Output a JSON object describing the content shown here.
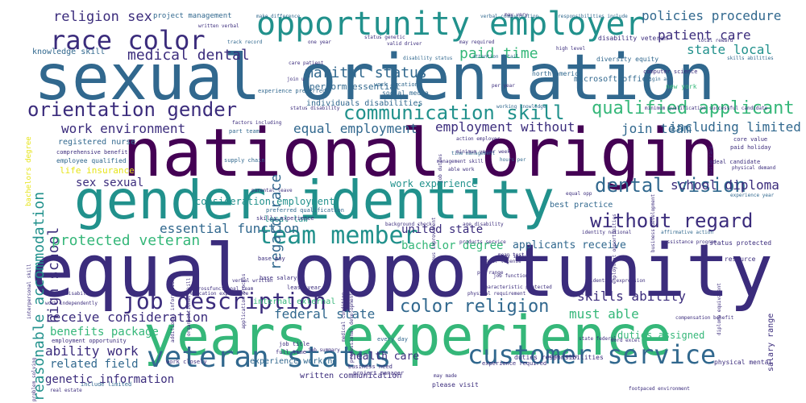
{
  "palette": {
    "dark_purple": "#440154",
    "indigo": "#3b2c7c",
    "blue": "#31688e",
    "teal": "#21918c",
    "green": "#35b779",
    "lime": "#90d743",
    "yellow": "#e6e419"
  },
  "words": [
    {
      "text": "sexual orientation",
      "color": "#31688e"
    },
    {
      "text": "national origin",
      "color": "#440154"
    },
    {
      "text": "gender identity",
      "color": "#21918c"
    },
    {
      "text": "equal opportunity",
      "color": "#3b2c7c"
    },
    {
      "text": "years experience",
      "color": "#35b779"
    },
    {
      "text": "opportunity employer",
      "color": "#21918c"
    },
    {
      "text": "race color",
      "color": "#3b2c7c"
    },
    {
      "text": "veteran status",
      "color": "#31688e"
    },
    {
      "text": "customer service",
      "color": "#31688e"
    },
    {
      "text": "team member",
      "color": "#21918c"
    },
    {
      "text": "job description",
      "color": "#3b2c7c"
    },
    {
      "text": "orientation gender",
      "color": "#3b2c7c"
    },
    {
      "text": "communication skill",
      "color": "#21918c"
    },
    {
      "text": "qualified applicant",
      "color": "#35b779"
    },
    {
      "text": "without regard",
      "color": "#3b2c7c"
    },
    {
      "text": "dental vision",
      "color": "#31688e"
    },
    {
      "text": "color religion",
      "color": "#31688e"
    },
    {
      "text": "reasonable accommodation",
      "color": "#21918c"
    },
    {
      "text": "high school",
      "color": "#3b2c7c"
    },
    {
      "text": "regard race",
      "color": "#31688e"
    },
    {
      "text": "medical dental",
      "color": "#3b2c7c"
    },
    {
      "text": "marital status",
      "color": "#31688e"
    },
    {
      "text": "paid time",
      "color": "#35b779"
    },
    {
      "text": "religion sex",
      "color": "#3b2c7c"
    },
    {
      "text": "policies procedure",
      "color": "#31688e"
    },
    {
      "text": "patient care",
      "color": "#3b2c7c"
    },
    {
      "text": "state local",
      "color": "#21918c"
    },
    {
      "text": "work environment",
      "color": "#3b2c7c"
    },
    {
      "text": "equal employment",
      "color": "#31688e"
    },
    {
      "text": "employment without",
      "color": "#3b2c7c"
    },
    {
      "text": "join team",
      "color": "#31688e"
    },
    {
      "text": "including limited",
      "color": "#31688e"
    },
    {
      "text": "school diploma",
      "color": "#3b2c7c"
    },
    {
      "text": "essential function",
      "color": "#31688e"
    },
    {
      "text": "protected veteran",
      "color": "#35b779"
    },
    {
      "text": "skills ability",
      "color": "#3b2c7c"
    },
    {
      "text": "must able",
      "color": "#35b779"
    },
    {
      "text": "federal state",
      "color": "#31688e"
    },
    {
      "text": "receive consideration",
      "color": "#3b2c7c"
    },
    {
      "text": "ability work",
      "color": "#3b2c7c"
    },
    {
      "text": "benefits package",
      "color": "#35b779"
    },
    {
      "text": "related field",
      "color": "#31688e"
    },
    {
      "text": "genetic information",
      "color": "#3b2c7c"
    },
    {
      "text": "sex sexual",
      "color": "#3b2c7c"
    },
    {
      "text": "united state",
      "color": "#3b2c7c"
    },
    {
      "text": "bachelor degree",
      "color": "#35b779"
    },
    {
      "text": "applicants receive",
      "color": "#31688e"
    },
    {
      "text": "health care",
      "color": "#3b2c7c"
    },
    {
      "text": "work experience",
      "color": "#21918c"
    },
    {
      "text": "duties assigned",
      "color": "#35b779"
    },
    {
      "text": "consideration employment",
      "color": "#21918c"
    },
    {
      "text": "life insurance",
      "color": "#e6e419"
    },
    {
      "text": "perform essential",
      "color": "#31688e"
    },
    {
      "text": "knowledge skill",
      "color": "#31688e"
    },
    {
      "text": "registered nurse",
      "color": "#31688e"
    },
    {
      "text": "project management",
      "color": "#31688e"
    },
    {
      "text": "microsoft office",
      "color": "#31688e"
    },
    {
      "text": "individuals disabilities",
      "color": "#31688e"
    },
    {
      "text": "local law",
      "color": "#21918c"
    },
    {
      "text": "internal external",
      "color": "#35b779"
    },
    {
      "text": "best practice",
      "color": "#31688e"
    },
    {
      "text": "experience working",
      "color": "#31688e"
    },
    {
      "text": "written communication",
      "color": "#3b2c7c"
    },
    {
      "text": "salary range",
      "color": "#3b2c7c"
    },
    {
      "text": "bachelors degree",
      "color": "#e6e419"
    },
    {
      "text": "north america",
      "color": "#31688e"
    },
    {
      "text": "new york",
      "color": "#35b779"
    },
    {
      "text": "status protected",
      "color": "#3b2c7c"
    },
    {
      "text": "human resource",
      "color": "#3b2c7c"
    },
    {
      "text": "employee qualified",
      "color": "#31688e"
    },
    {
      "text": "comprehensive benefit",
      "color": "#3b2c7c"
    },
    {
      "text": "supply chain",
      "color": "#31688e"
    },
    {
      "text": "part team",
      "color": "#31688e"
    },
    {
      "text": "disability veteran",
      "color": "#3b2c7c"
    },
    {
      "text": "diversity equity",
      "color": "#31688e"
    },
    {
      "text": "social media",
      "color": "#31688e"
    },
    {
      "text": "work location",
      "color": "#31688e"
    },
    {
      "text": "experience preferred",
      "color": "#31688e"
    },
    {
      "text": "computer science",
      "color": "#3b2c7c"
    },
    {
      "text": "preferred qualification",
      "color": "#31688e"
    },
    {
      "text": "skills experience",
      "color": "#3b2c7c"
    },
    {
      "text": "employment opportunity",
      "color": "#3b2c7c"
    },
    {
      "text": "job title",
      "color": "#3b2c7c"
    },
    {
      "text": "full time",
      "color": "#3b2c7c"
    },
    {
      "text": "please visit",
      "color": "#3b2c7c"
    },
    {
      "text": "every day",
      "color": "#31688e"
    },
    {
      "text": "project manager",
      "color": "#3b2c7c"
    },
    {
      "text": "business need",
      "color": "#3b2c7c"
    },
    {
      "text": "base salary",
      "color": "#3b2c7c"
    },
    {
      "text": "base pay",
      "color": "#3b2c7c"
    },
    {
      "text": "least year",
      "color": "#3b2c7c"
    },
    {
      "text": "work closely",
      "color": "#3b2c7c"
    },
    {
      "text": "include limited",
      "color": "#31688e"
    },
    {
      "text": "experience required",
      "color": "#3b2c7c"
    },
    {
      "text": "duties responsibilities",
      "color": "#3b2c7c"
    },
    {
      "text": "physical mental",
      "color": "#3b2c7c"
    },
    {
      "text": "paid holiday",
      "color": "#3b2c7c"
    },
    {
      "text": "ideal candidate",
      "color": "#3b2c7c"
    },
    {
      "text": "experience year",
      "color": "#31688e"
    },
    {
      "text": "core value",
      "color": "#3b2c7c"
    },
    {
      "text": "work independently",
      "color": "#3b2c7c"
    },
    {
      "text": "origin disability",
      "color": "#3b2c7c"
    },
    {
      "text": "written verbal",
      "color": "#3b2c7c"
    },
    {
      "text": "make difference",
      "color": "#31688e"
    },
    {
      "text": "track record",
      "color": "#31688e"
    },
    {
      "text": "valid driver",
      "color": "#3b2c7c"
    },
    {
      "text": "may required",
      "color": "#3b2c7c"
    },
    {
      "text": "verbal communication",
      "color": "#31688e"
    },
    {
      "text": "responsibilities include",
      "color": "#31688e"
    },
    {
      "text": "total reward",
      "color": "#3b2c7c"
    },
    {
      "text": "skills abilities",
      "color": "#31688e"
    },
    {
      "text": "high level",
      "color": "#3b2c7c"
    },
    {
      "text": "attention detail",
      "color": "#31688e"
    },
    {
      "text": "disability status",
      "color": "#31688e"
    },
    {
      "text": "origin age",
      "color": "#31688e"
    },
    {
      "text": "per year",
      "color": "#3b2c7c"
    },
    {
      "text": "time management",
      "color": "#31688e"
    },
    {
      "text": "management skill",
      "color": "#3b2c7c"
    },
    {
      "text": "minimum year",
      "color": "#3b2c7c"
    },
    {
      "text": "per week",
      "color": "#3b2c7c"
    },
    {
      "text": "hours per",
      "color": "#31688e"
    },
    {
      "text": "able work",
      "color": "#3b2c7c"
    },
    {
      "text": "action employer",
      "color": "#3b2c7c"
    },
    {
      "text": "working knowledge",
      "color": "#31688e"
    },
    {
      "text": "age disability",
      "color": "#3b2c7c"
    },
    {
      "text": "background check",
      "color": "#3b2c7c"
    },
    {
      "text": "identity national",
      "color": "#3b2c7c"
    },
    {
      "text": "affirmative action",
      "color": "#31688e"
    },
    {
      "text": "assistance program",
      "color": "#3b2c7c"
    },
    {
      "text": "pay range",
      "color": "#3b2c7c"
    },
    {
      "text": "job function",
      "color": "#3b2c7c"
    },
    {
      "text": "characteristic protected",
      "color": "#3b2c7c"
    },
    {
      "text": "physical requirement",
      "color": "#3b2c7c"
    },
    {
      "text": "identity expression",
      "color": "#3b2c7c"
    },
    {
      "text": "compensation benefit",
      "color": "#3b2c7c"
    },
    {
      "text": "products service",
      "color": "#3b2c7c"
    },
    {
      "text": "crossfunctional team",
      "color": "#3b2c7c"
    },
    {
      "text": "education experience",
      "color": "#3b2c7c"
    },
    {
      "text": "verbal written",
      "color": "#3b2c7c"
    },
    {
      "text": "interpersonal skill",
      "color": "#3b2c7c"
    },
    {
      "text": "professional development",
      "color": "#3b2c7c"
    },
    {
      "text": "medical condition",
      "color": "#3b2c7c"
    },
    {
      "text": "job duties",
      "color": "#3b2c7c"
    },
    {
      "text": "continuous improvement",
      "color": "#3b2c7c"
    },
    {
      "text": "employment opportunities",
      "color": "#3b2c7c"
    },
    {
      "text": "business development",
      "color": "#3b2c7c"
    },
    {
      "text": "diploma equivalent",
      "color": "#3b2c7c"
    },
    {
      "text": "problem solving",
      "color": "#3b2c7c"
    },
    {
      "text": "real estate",
      "color": "#3b2c7c"
    },
    {
      "text": "successful candidate",
      "color": "#3b2c7c"
    },
    {
      "text": "minimum qualification",
      "color": "#3b2c7c"
    },
    {
      "text": "application process",
      "color": "#3b2c7c"
    },
    {
      "text": "organizational skill",
      "color": "#3b2c7c"
    },
    {
      "text": "additional information",
      "color": "#3b2c7c"
    },
    {
      "text": "join u",
      "color": "#3b2c7c"
    },
    {
      "text": "factors including",
      "color": "#3b2c7c"
    },
    {
      "text": "status disability",
      "color": "#3b2c7c"
    },
    {
      "text": "parental leave",
      "color": "#3b2c7c"
    },
    {
      "text": "physical demand",
      "color": "#3b2c7c"
    },
    {
      "text": "mean test",
      "color": "#3b2c7c"
    },
    {
      "text": "state federal",
      "color": "#3b2c7c"
    },
    {
      "text": "word excel",
      "color": "#3b2c7c"
    },
    {
      "text": "footpaced environment",
      "color": "#3b2c7c"
    },
    {
      "text": "wide range",
      "color": "#3b2c7c"
    },
    {
      "text": "may vary",
      "color": "#3b2c7c"
    },
    {
      "text": "one year",
      "color": "#3b2c7c"
    },
    {
      "text": "status genetic",
      "color": "#3b2c7c"
    },
    {
      "text": "care patient",
      "color": "#3b2c7c"
    },
    {
      "text": "job summary",
      "color": "#3b2c7c"
    },
    {
      "text": "may include",
      "color": "#3b2c7c"
    },
    {
      "text": "driver license",
      "color": "#3b2c7c"
    },
    {
      "text": "basis race",
      "color": "#3b2c7c"
    },
    {
      "text": "may made",
      "color": "#3b2c7c"
    },
    {
      "text": "equal opp",
      "color": "#3b2c7c"
    }
  ]
}
